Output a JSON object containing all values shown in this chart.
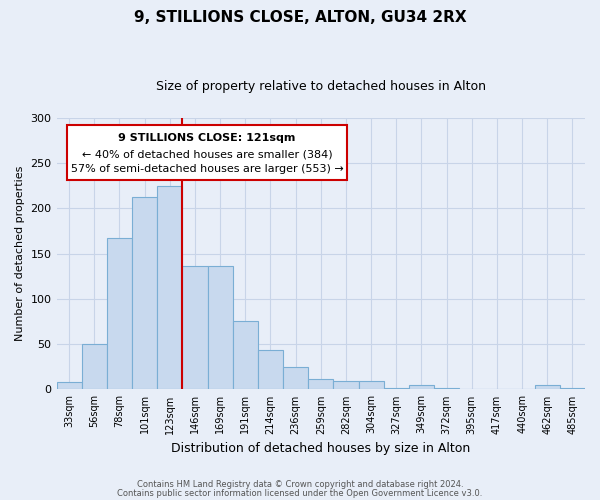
{
  "title": "9, STILLIONS CLOSE, ALTON, GU34 2RX",
  "subtitle": "Size of property relative to detached houses in Alton",
  "xlabel": "Distribution of detached houses by size in Alton",
  "ylabel": "Number of detached properties",
  "bar_labels": [
    "33sqm",
    "56sqm",
    "78sqm",
    "101sqm",
    "123sqm",
    "146sqm",
    "169sqm",
    "191sqm",
    "214sqm",
    "236sqm",
    "259sqm",
    "282sqm",
    "304sqm",
    "327sqm",
    "349sqm",
    "372sqm",
    "395sqm",
    "417sqm",
    "440sqm",
    "462sqm",
    "485sqm"
  ],
  "bar_values": [
    8,
    50,
    167,
    213,
    225,
    136,
    136,
    76,
    43,
    25,
    12,
    9,
    9,
    2,
    5,
    2,
    0,
    0,
    0,
    5,
    2
  ],
  "bar_color": "#c8d9ee",
  "bar_edge_color": "#7aaed4",
  "vline_color": "#cc0000",
  "annotation_title": "9 STILLIONS CLOSE: 121sqm",
  "annotation_line1": "← 40% of detached houses are smaller (384)",
  "annotation_line2": "57% of semi-detached houses are larger (553) →",
  "annotation_box_color": "#ffffff",
  "annotation_box_edge": "#cc0000",
  "ylim": [
    0,
    300
  ],
  "yticks": [
    0,
    50,
    100,
    150,
    200,
    250,
    300
  ],
  "footer1": "Contains HM Land Registry data © Crown copyright and database right 2024.",
  "footer2": "Contains public sector information licensed under the Open Government Licence v3.0.",
  "background_color": "#e8eef8",
  "grid_color": "#c8d4e8"
}
